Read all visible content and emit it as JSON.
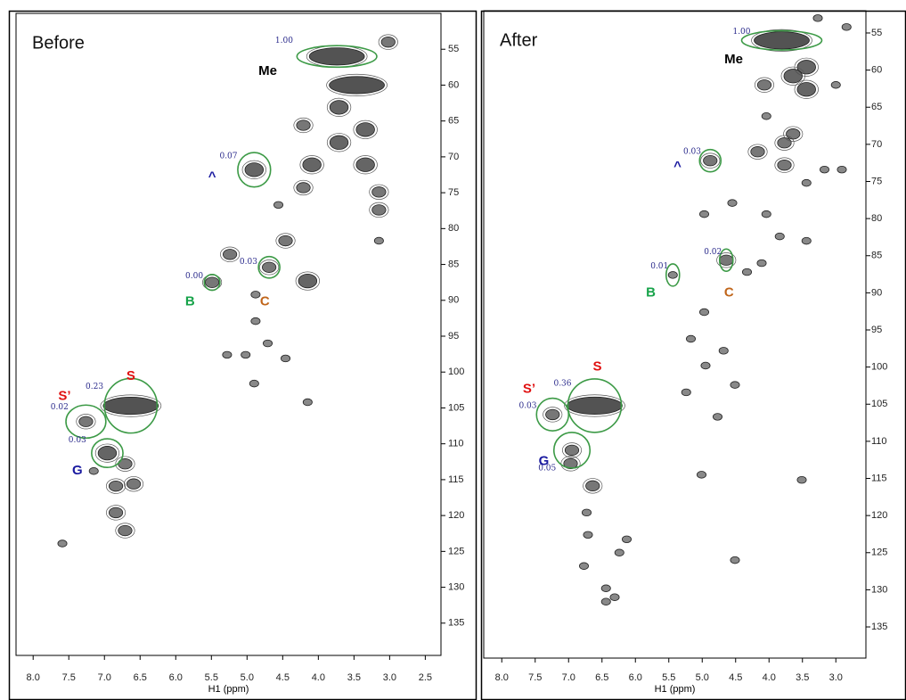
{
  "chart_data": [
    {
      "type": "contour",
      "title": "Before",
      "x_label": "H1 (ppm)",
      "xlim": [
        8.24,
        2.28
      ],
      "ylim": [
        50,
        139.5
      ],
      "xticks": [
        {
          "value": 8.0,
          "label": "8.0"
        },
        {
          "value": 7.5,
          "label": "7.5"
        },
        {
          "value": 7.0,
          "label": "7.0"
        },
        {
          "value": 6.5,
          "label": "6.5"
        },
        {
          "value": 6.0,
          "label": "6.0"
        },
        {
          "value": 5.5,
          "label": "5.5"
        },
        {
          "value": 5.0,
          "label": "5.0"
        },
        {
          "value": 4.5,
          "label": "4.5"
        },
        {
          "value": 4.0,
          "label": "4.0"
        },
        {
          "value": 3.5,
          "label": "3.5"
        },
        {
          "value": 3.0,
          "label": "3.0"
        },
        {
          "value": 2.5,
          "label": "2.5"
        }
      ],
      "yticks": [
        55,
        60,
        65,
        70,
        75,
        80,
        85,
        90,
        95,
        100,
        105,
        110,
        115,
        120,
        125,
        130,
        135
      ],
      "peak_color": "#4a4a4a",
      "peaks": {
        "x": [
          3.74,
          3.02,
          3.46,
          3.71,
          3.34,
          4.21,
          3.71,
          4.09,
          3.34,
          3.15,
          4.21,
          3.15,
          4.56,
          3.15,
          4.9,
          4.46,
          4.69,
          4.15,
          5.49,
          5.24,
          4.88,
          4.88,
          5.28,
          5.02,
          4.71,
          4.46,
          4.9,
          4.15,
          6.63,
          7.26,
          6.96,
          7.15,
          6.71,
          6.84,
          6.59,
          6.84,
          6.71,
          7.59
        ],
        "y": [
          56.0,
          54.0,
          60.0,
          63.1,
          66.2,
          65.6,
          68.0,
          71.1,
          71.1,
          74.9,
          74.3,
          77.4,
          76.7,
          81.7,
          71.8,
          81.7,
          85.4,
          87.3,
          87.5,
          83.6,
          89.2,
          92.9,
          97.6,
          97.6,
          96.0,
          98.1,
          101.6,
          104.2,
          104.7,
          106.9,
          111.3,
          113.8,
          112.8,
          115.9,
          115.6,
          119.6,
          122.1,
          123.9
        ],
        "intensity": [
          4,
          2,
          4,
          3,
          3,
          2,
          3,
          3,
          3,
          2,
          2,
          2,
          1,
          1,
          3,
          2,
          2,
          3,
          2,
          2,
          1,
          1,
          1,
          1,
          1,
          1,
          1,
          1,
          4,
          2,
          3,
          1,
          2,
          2,
          2,
          2,
          2,
          1
        ]
      },
      "regions": [
        {
          "x": 3.74,
          "y": 56.0,
          "rx": 0.56,
          "ry": 1.5,
          "color": "#3c9a46"
        },
        {
          "x": 4.9,
          "y": 71.8,
          "rx": 0.23,
          "ry": 2.4,
          "color": "#3c9a46"
        },
        {
          "x": 4.69,
          "y": 85.4,
          "rx": 0.15,
          "ry": 1.5,
          "color": "#3c9a46"
        },
        {
          "x": 5.49,
          "y": 87.5,
          "rx": 0.11,
          "ry": 1.1,
          "color": "#3c9a46"
        },
        {
          "x": 6.63,
          "y": 104.7,
          "rx": 0.37,
          "ry": 3.8,
          "color": "#3c9a46"
        },
        {
          "x": 7.26,
          "y": 106.9,
          "rx": 0.28,
          "ry": 2.3,
          "color": "#3c9a46"
        },
        {
          "x": 6.96,
          "y": 111.3,
          "rx": 0.22,
          "ry": 2.0,
          "color": "#3c9a46"
        }
      ],
      "annotations": [
        {
          "text": "Me",
          "x": 4.71,
          "y": 58.1,
          "color": "#000000"
        },
        {
          "text": "1.00",
          "x": 4.48,
          "y": 53.8,
          "color": "#2b2b8c"
        },
        {
          "text": "0.07",
          "x": 5.26,
          "y": 69.9,
          "color": "#2b2b8c"
        },
        {
          "text": "^",
          "x": 5.49,
          "y": 72.8,
          "color": "#1a1aa0"
        },
        {
          "text": "0.03",
          "x": 4.98,
          "y": 84.6,
          "color": "#2b2b8c"
        },
        {
          "text": "0.00",
          "x": 5.74,
          "y": 86.6,
          "color": "#2b2b8c"
        },
        {
          "text": "B",
          "x": 5.8,
          "y": 90.2,
          "color": "#17a34a"
        },
        {
          "text": "C",
          "x": 4.75,
          "y": 90.2,
          "color": "#c0651a"
        },
        {
          "text": "S",
          "x": 6.63,
          "y": 100.6,
          "color": "#e01010"
        },
        {
          "text": "0.23",
          "x": 7.14,
          "y": 102.0,
          "color": "#2b2b8c"
        },
        {
          "text": "S’",
          "x": 7.56,
          "y": 103.4,
          "color": "#e01010"
        },
        {
          "text": "0.02",
          "x": 7.63,
          "y": 104.9,
          "color": "#2b2b8c"
        },
        {
          "text": "0.03",
          "x": 7.38,
          "y": 109.5,
          "color": "#2b2b8c"
        },
        {
          "text": "G",
          "x": 7.38,
          "y": 113.8,
          "color": "#1a1aa0"
        }
      ]
    },
    {
      "type": "contour",
      "title": "After",
      "x_label": "H1 (ppm)",
      "xlim": [
        8.27,
        2.55
      ],
      "ylim": [
        52.0,
        139.2
      ],
      "xticks": [
        {
          "value": 8.0,
          "label": "8.0"
        },
        {
          "value": 7.5,
          "label": "7.5"
        },
        {
          "value": 7.0,
          "label": "7.0"
        },
        {
          "value": 6.5,
          "label": "6.5"
        },
        {
          "value": 6.0,
          "label": "6.0"
        },
        {
          "value": 5.5,
          "label": "5.5"
        },
        {
          "value": 5.0,
          "label": "5.0"
        },
        {
          "value": 4.5,
          "label": "4.5"
        },
        {
          "value": 4.0,
          "label": "4.0"
        },
        {
          "value": 3.5,
          "label": "3.5"
        },
        {
          "value": 3.0,
          "label": "3.0"
        }
      ],
      "yticks": [
        55,
        60,
        65,
        70,
        75,
        80,
        85,
        90,
        95,
        100,
        105,
        110,
        115,
        120,
        125,
        130,
        135
      ],
      "peak_color": "#4a4a4a",
      "peaks": {
        "x": [
          3.81,
          3.27,
          2.84,
          3.44,
          3.44,
          3.64,
          4.07,
          3.0,
          4.04,
          3.77,
          3.64,
          4.17,
          3.77,
          3.17,
          2.91,
          3.44,
          4.88,
          4.55,
          4.04,
          4.97,
          3.84,
          3.44,
          4.11,
          4.33,
          4.64,
          5.44,
          4.97,
          5.17,
          4.68,
          4.95,
          4.51,
          5.24,
          4.77,
          6.61,
          7.24,
          6.95,
          6.64,
          6.97,
          6.73,
          6.71,
          6.13,
          6.24,
          6.77,
          6.44,
          6.31,
          6.44,
          5.01,
          4.51,
          3.51
        ],
        "y": [
          56.0,
          53.0,
          54.2,
          59.6,
          62.6,
          60.8,
          62.0,
          62.0,
          66.2,
          69.8,
          68.6,
          71.0,
          72.8,
          73.4,
          73.4,
          75.2,
          72.2,
          77.9,
          79.4,
          79.4,
          82.4,
          83.0,
          86.0,
          87.2,
          85.6,
          87.6,
          92.6,
          96.2,
          97.8,
          99.8,
          102.4,
          103.4,
          106.7,
          105.2,
          106.4,
          111.2,
          116.0,
          113.0,
          119.6,
          122.6,
          123.2,
          125.0,
          126.8,
          129.8,
          131.0,
          131.6,
          114.5,
          126.0,
          115.2
        ],
        "intensity": [
          4,
          1,
          1,
          3,
          3,
          3,
          2,
          1,
          1,
          2,
          2,
          2,
          2,
          1,
          1,
          1,
          2,
          1,
          1,
          1,
          1,
          1,
          1,
          1,
          2,
          1,
          1,
          1,
          1,
          1,
          1,
          1,
          1,
          4,
          2,
          2,
          2,
          2,
          1,
          1,
          1,
          1,
          1,
          1,
          1,
          1,
          1,
          1,
          1
        ]
      },
      "regions": [
        {
          "x": 3.81,
          "y": 56.0,
          "rx": 0.6,
          "ry": 1.3,
          "color": "#3c9a46"
        },
        {
          "x": 4.88,
          "y": 72.2,
          "rx": 0.16,
          "ry": 1.5,
          "color": "#3c9a46"
        },
        {
          "x": 4.64,
          "y": 85.6,
          "rx": 0.1,
          "ry": 1.5,
          "color": "#3c9a46"
        },
        {
          "x": 5.44,
          "y": 87.6,
          "rx": 0.1,
          "ry": 1.5,
          "color": "#3c9a46"
        },
        {
          "x": 6.61,
          "y": 105.2,
          "rx": 0.4,
          "ry": 3.6,
          "color": "#3c9a46"
        },
        {
          "x": 7.24,
          "y": 106.4,
          "rx": 0.24,
          "ry": 2.2,
          "color": "#3c9a46"
        },
        {
          "x": 6.95,
          "y": 111.2,
          "rx": 0.27,
          "ry": 2.4,
          "color": "#3c9a46"
        }
      ],
      "annotations": [
        {
          "text": "Me",
          "x": 4.53,
          "y": 58.6,
          "color": "#000000"
        },
        {
          "text": "1.00",
          "x": 4.41,
          "y": 54.8,
          "color": "#2b2b8c"
        },
        {
          "text": "0.03",
          "x": 5.15,
          "y": 71.0,
          "color": "#2b2b8c"
        },
        {
          "text": "^",
          "x": 5.37,
          "y": 73.0,
          "color": "#1a1aa0"
        },
        {
          "text": "0.02",
          "x": 4.84,
          "y": 84.5,
          "color": "#2b2b8c"
        },
        {
          "text": "0.01",
          "x": 5.64,
          "y": 86.4,
          "color": "#2b2b8c"
        },
        {
          "text": "B",
          "x": 5.77,
          "y": 90.0,
          "color": "#17a34a"
        },
        {
          "text": "C",
          "x": 4.6,
          "y": 90.0,
          "color": "#c0651a"
        },
        {
          "text": "S",
          "x": 6.57,
          "y": 100.0,
          "color": "#e01010"
        },
        {
          "text": "0.36",
          "x": 7.09,
          "y": 102.2,
          "color": "#2b2b8c"
        },
        {
          "text": "S’",
          "x": 7.59,
          "y": 103.0,
          "color": "#e01010"
        },
        {
          "text": "0.03",
          "x": 7.61,
          "y": 105.2,
          "color": "#2b2b8c"
        },
        {
          "text": "G",
          "x": 7.37,
          "y": 112.7,
          "color": "#1a1aa0"
        },
        {
          "text": "0.05",
          "x": 7.32,
          "y": 113.6,
          "color": "#2b2b8c"
        }
      ]
    }
  ]
}
